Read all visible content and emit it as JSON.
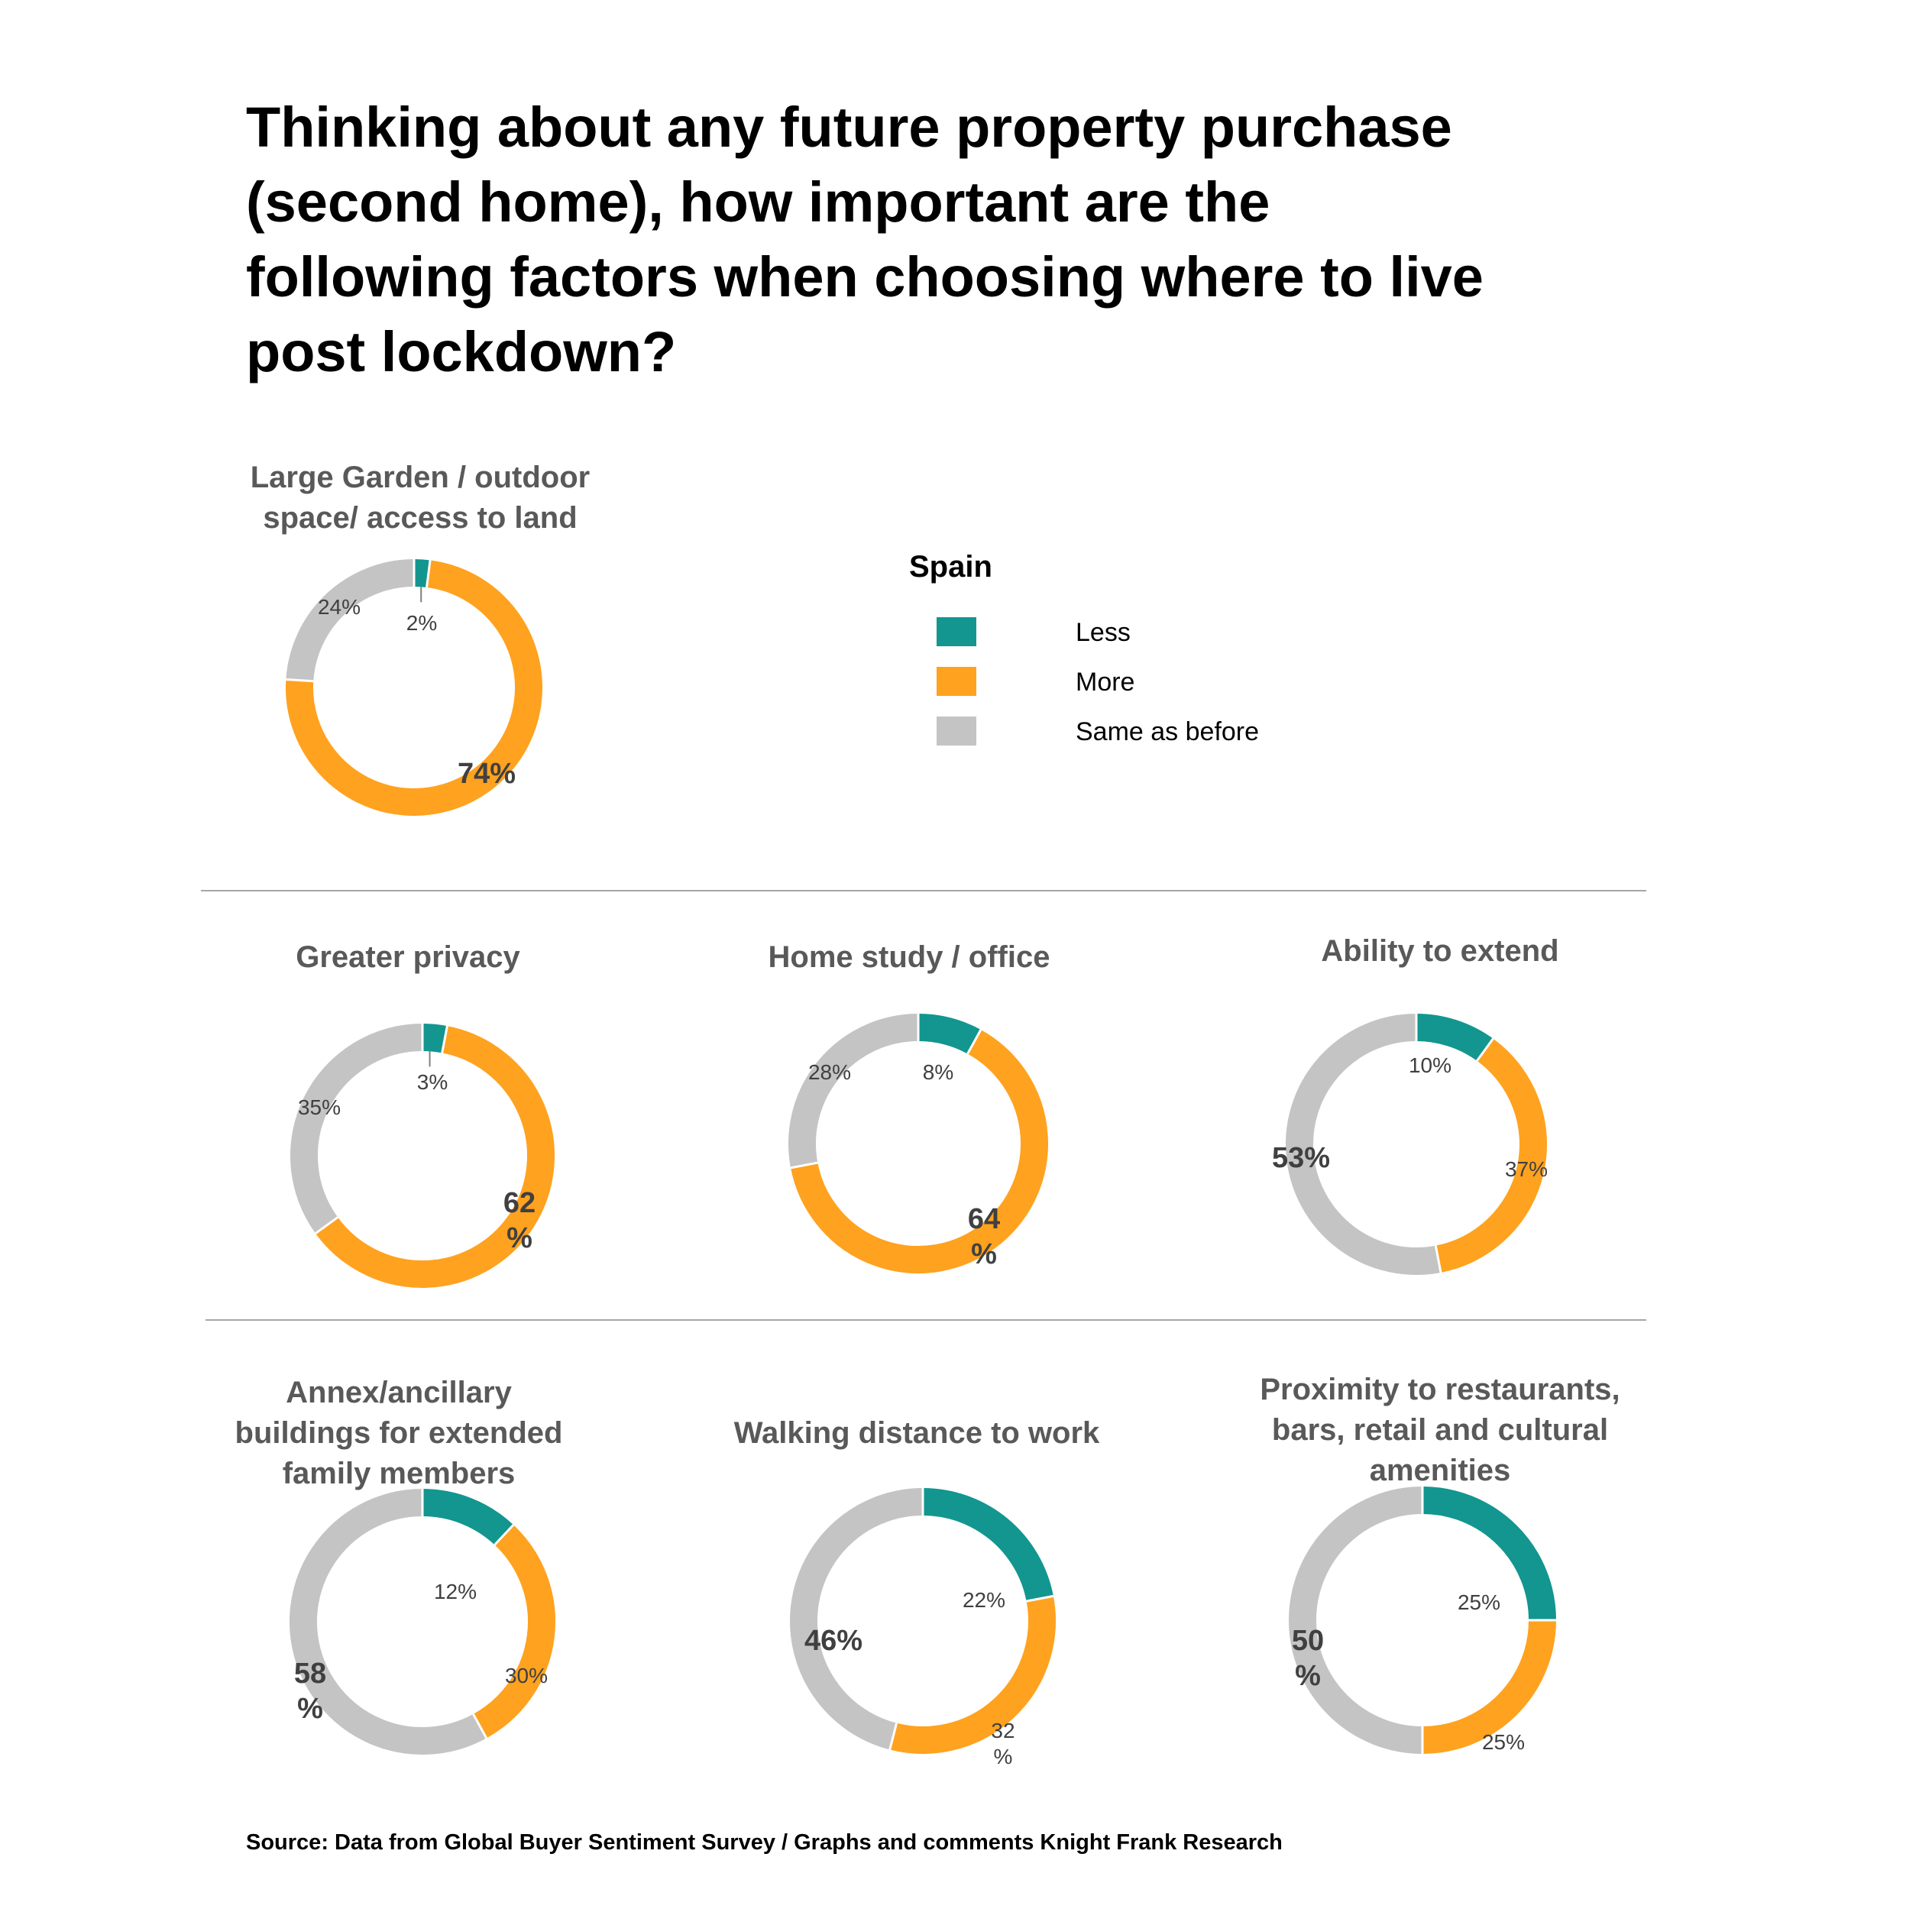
{
  "title_lines": [
    "Thinking about any future property purchase",
    "(second home), how important are the",
    "following factors when choosing where to live",
    "post lockdown?"
  ],
  "legend": {
    "title": "Spain",
    "items": [
      {
        "label": "Less",
        "color": "#12968f"
      },
      {
        "label": "More",
        "color": "#ffa21f"
      },
      {
        "label": "Same as before",
        "color": "#c4c4c4"
      }
    ]
  },
  "colors": {
    "less": "#12968f",
    "more": "#ffa21f",
    "same": "#c4c4c4"
  },
  "chart_data": [
    {
      "type": "pie",
      "title_lines": [
        "Large Garden / outdoor",
        "space/ access to land"
      ],
      "slices": [
        {
          "category": "Less",
          "value": 2,
          "label": "2%"
        },
        {
          "category": "More",
          "value": 74,
          "label": "74%"
        },
        {
          "category": "Same as before",
          "value": 24,
          "label": "24%"
        }
      ]
    },
    {
      "type": "pie",
      "title_lines": [
        "Greater privacy"
      ],
      "slices": [
        {
          "category": "Less",
          "value": 3,
          "label": "3%"
        },
        {
          "category": "More",
          "value": 62,
          "label": "62 %"
        },
        {
          "category": "Same as before",
          "value": 35,
          "label": "35%"
        }
      ]
    },
    {
      "type": "pie",
      "title_lines": [
        "Home study / office"
      ],
      "slices": [
        {
          "category": "Less",
          "value": 8,
          "label": "8%"
        },
        {
          "category": "More",
          "value": 64,
          "label": "64 %"
        },
        {
          "category": "Same as before",
          "value": 28,
          "label": "28%"
        }
      ]
    },
    {
      "type": "pie",
      "title_lines": [
        "Ability to extend"
      ],
      "slices": [
        {
          "category": "Less",
          "value": 10,
          "label": "10%"
        },
        {
          "category": "More",
          "value": 37,
          "label": "37%"
        },
        {
          "category": "Same as before",
          "value": 53,
          "label": "53%"
        }
      ]
    },
    {
      "type": "pie",
      "title_lines": [
        "Annex/ancillary",
        "buildings for extended",
        "family members"
      ],
      "slices": [
        {
          "category": "Less",
          "value": 12,
          "label": "12%"
        },
        {
          "category": "More",
          "value": 30,
          "label": "30%"
        },
        {
          "category": "Same as before",
          "value": 58,
          "label": "58 %"
        }
      ]
    },
    {
      "type": "pie",
      "title_lines": [
        "Walking distance to work"
      ],
      "slices": [
        {
          "category": "Less",
          "value": 22,
          "label": "22%"
        },
        {
          "category": "More",
          "value": 32,
          "label": "32 %"
        },
        {
          "category": "Same as before",
          "value": 46,
          "label": "46%"
        }
      ]
    },
    {
      "type": "pie",
      "title_lines": [
        "Proximity to restaurants,",
        "bars, retail and cultural",
        "amenities"
      ],
      "slices": [
        {
          "category": "Less",
          "value": 25,
          "label": "25%"
        },
        {
          "category": "More",
          "value": 25,
          "label": "25%"
        },
        {
          "category": "Same as before",
          "value": 50,
          "label": "50 %"
        }
      ]
    }
  ],
  "source": "Source:  Data from Global Buyer Sentiment Survey / Graphs and comments Knight Frank Research"
}
